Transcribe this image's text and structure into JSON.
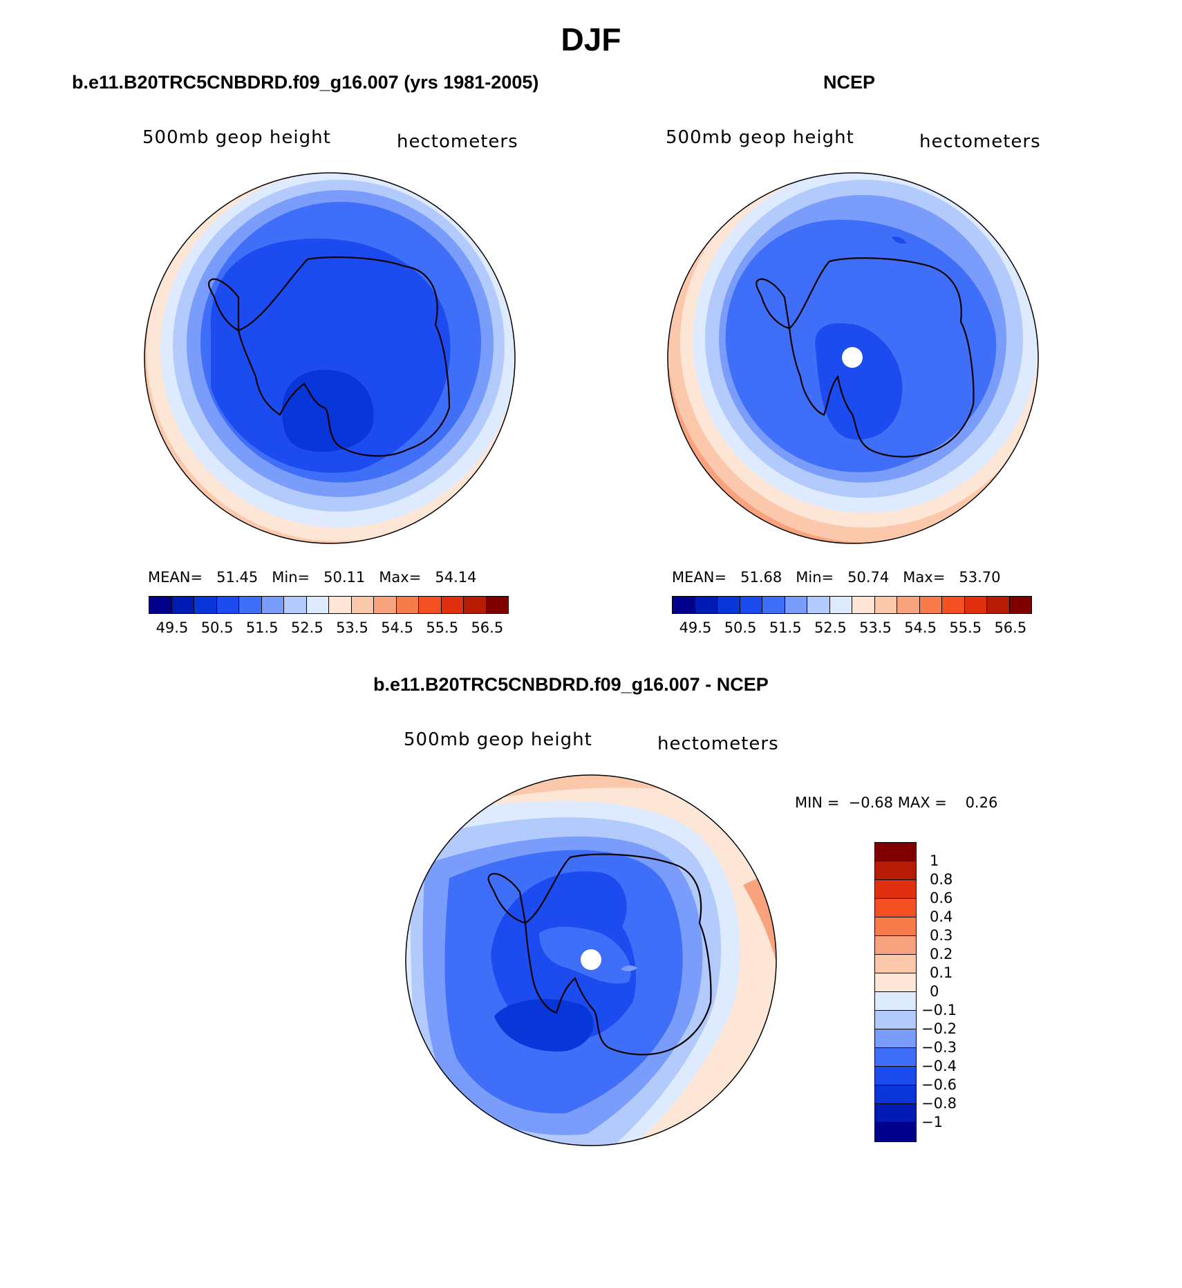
{
  "title": "DJF",
  "panels": {
    "model": {
      "title": "b.e11.B20TRC5CNBDRD.f09_g16.007 (yrs 1981-2005)",
      "left_label": "500mb geop height",
      "right_label": "hectometers",
      "mean_label": "MEAN=",
      "mean": "51.45",
      "min_label": "Min=",
      "min": "50.11",
      "max_label": "Max=",
      "max": "54.14"
    },
    "obs": {
      "title": "NCEP",
      "left_label": "500mb geop height",
      "right_label": "hectometers",
      "mean_label": "MEAN=",
      "mean": "51.68",
      "min_label": "Min=",
      "min": "50.74",
      "max_label": "Max=",
      "max": "53.70"
    },
    "diff": {
      "title": "b.e11.B20TRC5CNBDRD.f09_g16.007 - NCEP",
      "left_label": "500mb geop height",
      "right_label": "hectometers",
      "min_label": "MIN =",
      "min": "−0.68",
      "max_label": "MAX =",
      "max": "0.26"
    }
  },
  "colorbars": {
    "abs": {
      "colors": [
        "#00008a",
        "#001bb4",
        "#0836d8",
        "#1c4cf0",
        "#3f6ff8",
        "#7a9cfa",
        "#b3cafd",
        "#deeafd",
        "#fee6d6",
        "#fcc8ac",
        "#f9a37e",
        "#f77b4b",
        "#f55023",
        "#e03010",
        "#b51b05",
        "#800000"
      ],
      "labels": [
        "49.5",
        "50.5",
        "51.5",
        "52.5",
        "53.5",
        "54.5",
        "55.5",
        "56.5"
      ]
    },
    "diff": {
      "colors": [
        "#800000",
        "#b51b05",
        "#e03010",
        "#f55023",
        "#f77b4b",
        "#f9a37e",
        "#fcc8ac",
        "#fee6d6",
        "#deeafd",
        "#b3cafd",
        "#7a9cfa",
        "#3f6ff8",
        "#1c4cf0",
        "#0836d8",
        "#001bb4",
        "#00008a"
      ],
      "labels": [
        "1",
        "0.8",
        "0.6",
        "0.4",
        "0.3",
        "0.2",
        "0.1",
        "0",
        "−0.1",
        "−0.2",
        "−0.3",
        "−0.4",
        "−0.6",
        "−0.8",
        "−1"
      ]
    }
  }
}
